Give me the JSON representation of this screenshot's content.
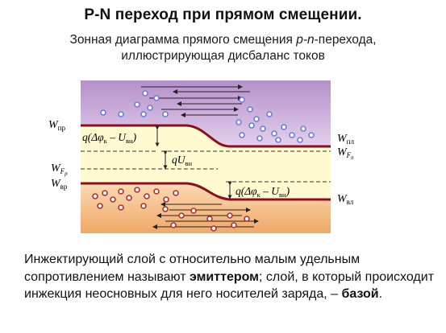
{
  "title": "P-N переход при прямом смещении.",
  "subtitle": {
    "line1_pre": "Зонная диаграмма прямого смещения ",
    "line1_italic": "p-n",
    "line1_post": "-перехода,",
    "line2": "иллюстрирующая дисбаланс токов"
  },
  "diagram": {
    "labels": {
      "w_cp": "W",
      "w_cp_sub": "пр",
      "w_cn": "W",
      "w_cn_sub": "пл",
      "w_fn": "W",
      "w_fn_sub": "F",
      "w_fn_subsub": "n",
      "w_fp": "W",
      "w_fp_sub": "F",
      "w_fp_subsub": "p",
      "w_vp": "W",
      "w_vp_sub": "вр",
      "w_vn": "W",
      "w_vn_sub": "вл",
      "barrier_upper": "q(Δφ",
      "barrier_upper_k": "к",
      "barrier_upper_mid": " – U",
      "barrier_upper_vn": "вн",
      "barrier_upper_end": ")",
      "qu": "qU",
      "qu_sub": "вн",
      "barrier_lower": "q(Δφ",
      "barrier_lower_k": "к",
      "barrier_lower_mid": " – U",
      "barrier_lower_vn": "вн",
      "barrier_lower_end": ")"
    },
    "colors": {
      "conduction_band_fill": "#c9a9d8",
      "valence_band_fill": "#f2b27a",
      "gap_fill": "#fff9c8",
      "band_edge": "#8a1020",
      "carrier": "#6b7fd6",
      "arrow": "#222222"
    }
  },
  "caption": {
    "part1": "Инжектирующий слой с относительно малым удельным сопротивлением называют ",
    "emitter": "эмиттером",
    "part2": "; слой, в который происходит инжекция неосновных для него носителей заряда, – ",
    "base": "базой",
    "part3": "."
  }
}
